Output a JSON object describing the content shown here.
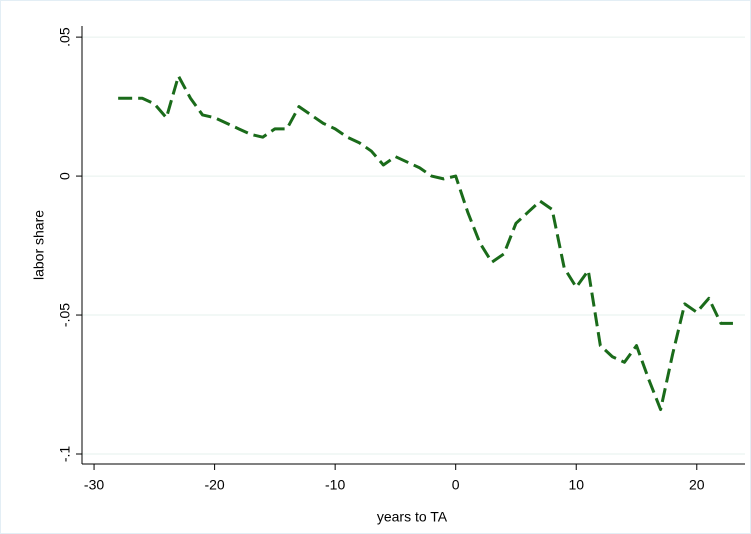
{
  "chart_data": {
    "type": "line",
    "x_label": "years to TA",
    "y_label": "labor share",
    "x": [
      -28,
      -27,
      -26,
      -25,
      -24,
      -23,
      -22,
      -21,
      -20,
      -19,
      -18,
      -17,
      -16,
      -15,
      -14,
      -13,
      -12,
      -11,
      -10,
      -9,
      -8,
      -7,
      -6,
      -5,
      -4,
      -3,
      -2,
      -1,
      0,
      1,
      2,
      3,
      4,
      5,
      6,
      7,
      8,
      9,
      10,
      11,
      12,
      13,
      14,
      15,
      16,
      17,
      18,
      19,
      20,
      21,
      22,
      23
    ],
    "series": [
      {
        "color": "#1a6b1a",
        "dash": true,
        "values": [
          0.028,
          0.028,
          0.028,
          0.026,
          0.021,
          0.036,
          0.028,
          0.022,
          0.021,
          0.019,
          0.017,
          0.015,
          0.014,
          0.017,
          0.017,
          0.025,
          0.022,
          0.019,
          0.017,
          0.014,
          0.012,
          0.009,
          0.004,
          0.007,
          0.005,
          0.003,
          0,
          -0.001,
          0,
          -0.013,
          -0.024,
          -0.031,
          -0.028,
          -0.017,
          -0.013,
          -0.009,
          -0.012,
          -0.033,
          -0.04,
          -0.034,
          -0.061,
          -0.065,
          -0.067,
          -0.061,
          -0.073,
          -0.084,
          -0.064,
          -0.046,
          -0.049,
          -0.044,
          -0.053,
          -0.053
        ]
      }
    ],
    "xlim": [
      -31,
      24
    ],
    "xticks": [
      -30,
      -20,
      -10,
      0,
      10,
      20
    ],
    "ylim": [
      -0.1036,
      0.054
    ],
    "yticks": [
      {
        "value": 0.05,
        "label": ".05"
      },
      0,
      {
        "value": -0.05,
        "label": "-.05"
      },
      {
        "value": -0.1,
        "label": "-.1"
      }
    ],
    "grid": true
  }
}
